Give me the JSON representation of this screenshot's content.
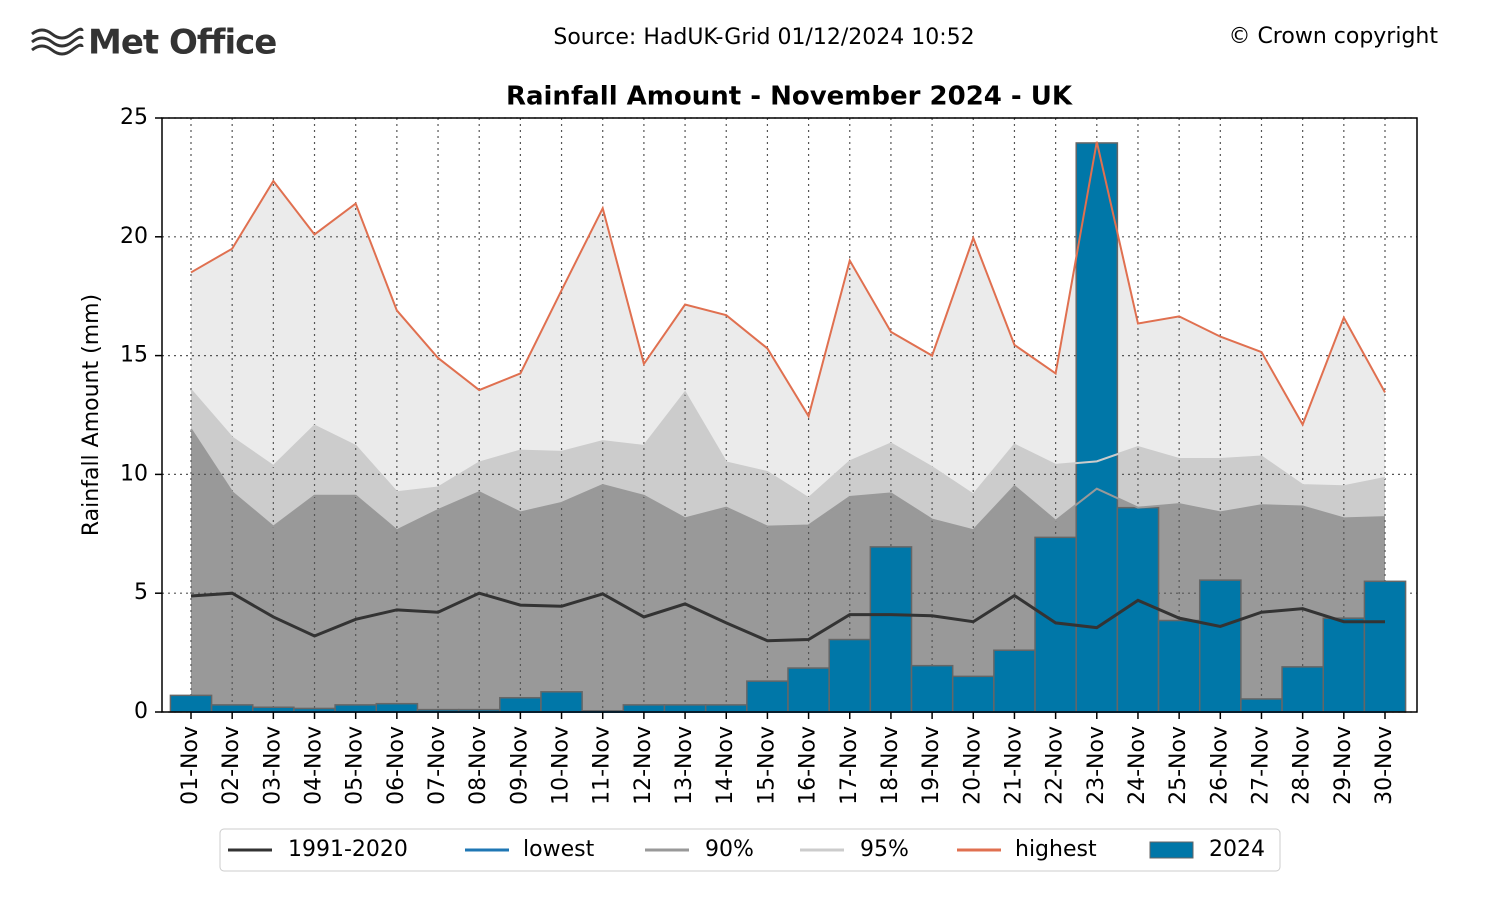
{
  "header": {
    "logo": "Met Office",
    "source": "Source: HadUK-Grid 01/12/2024 10:52",
    "copyright": "© Crown copyright"
  },
  "chart_data": {
    "type": "line",
    "title": "Rainfall Amount - November 2024 - UK",
    "y_label": "Rainfall Amount (mm)",
    "categories": [
      "01-Nov",
      "02-Nov",
      "03-Nov",
      "04-Nov",
      "05-Nov",
      "06-Nov",
      "07-Nov",
      "08-Nov",
      "09-Nov",
      "10-Nov",
      "11-Nov",
      "12-Nov",
      "13-Nov",
      "14-Nov",
      "15-Nov",
      "16-Nov",
      "17-Nov",
      "18-Nov",
      "19-Nov",
      "20-Nov",
      "21-Nov",
      "22-Nov",
      "23-Nov",
      "24-Nov",
      "25-Nov",
      "26-Nov",
      "27-Nov",
      "28-Nov",
      "29-Nov",
      "30-Nov"
    ],
    "ylim": [
      0,
      25
    ],
    "yticks": [
      0,
      5,
      10,
      15,
      20,
      25
    ],
    "grid": true,
    "series": [
      {
        "name": "1991-2020",
        "type": "line",
        "color": "#333333",
        "values": [
          4.88,
          5.0,
          4.0,
          3.2,
          3.9,
          4.3,
          4.2,
          5.0,
          4.5,
          4.45,
          4.97,
          4.0,
          4.55,
          3.75,
          3.0,
          3.05,
          4.1,
          4.1,
          4.05,
          3.8,
          4.9,
          3.75,
          3.55,
          4.7,
          3.95,
          3.6,
          4.2,
          4.35,
          3.8,
          3.8
        ]
      },
      {
        "name": "lowest",
        "type": "line",
        "color": "#1f77b4",
        "values": [
          0,
          0,
          0,
          0,
          0,
          0,
          0,
          0,
          0,
          0,
          0,
          0,
          0,
          0,
          0,
          0,
          0,
          0,
          0,
          0,
          0,
          0,
          0,
          0,
          0,
          0,
          0,
          0,
          0,
          0
        ]
      },
      {
        "name": "90%",
        "type": "line",
        "color": "#999999",
        "fill": "#999999",
        "values": [
          11.9,
          9.25,
          7.8,
          9.1,
          9.1,
          7.65,
          8.5,
          9.25,
          8.4,
          8.8,
          9.55,
          9.1,
          8.15,
          8.6,
          7.8,
          7.85,
          9.05,
          9.2,
          8.1,
          7.65,
          9.5,
          8.05,
          9.4,
          8.6,
          8.75,
          8.4,
          8.7,
          8.65,
          8.15,
          8.2
        ]
      },
      {
        "name": "95%",
        "type": "line",
        "color": "#cccccc",
        "fill": "#cccccc",
        "values": [
          13.55,
          11.55,
          10.35,
          12.05,
          11.2,
          9.25,
          9.45,
          10.5,
          11.0,
          10.95,
          11.4,
          11.2,
          13.45,
          10.5,
          10.1,
          9.0,
          10.55,
          11.3,
          10.3,
          9.15,
          11.25,
          10.4,
          10.55,
          11.15,
          10.65,
          10.65,
          10.75,
          9.55,
          9.5,
          9.85
        ]
      },
      {
        "name": "highest",
        "type": "line",
        "color": "#e07050",
        "fill": "#ebebeb",
        "values": [
          18.5,
          19.5,
          22.35,
          20.1,
          21.4,
          16.9,
          14.9,
          13.55,
          14.25,
          17.75,
          21.2,
          14.65,
          17.15,
          16.7,
          15.3,
          12.45,
          19.0,
          16.0,
          15.0,
          19.95,
          15.45,
          14.25,
          24.0,
          16.35,
          16.65,
          15.8,
          15.15,
          12.1,
          16.6,
          13.45
        ]
      },
      {
        "name": "2024",
        "type": "bar",
        "color": "#0077a8",
        "values": [
          0.7,
          0.3,
          0.2,
          0.15,
          0.3,
          0.35,
          0.1,
          0.1,
          0.6,
          0.85,
          0.05,
          0.3,
          0.3,
          0.3,
          1.3,
          1.85,
          3.05,
          6.95,
          1.95,
          1.5,
          2.6,
          7.35,
          23.95,
          8.6,
          3.85,
          5.55,
          0.55,
          1.9,
          3.95,
          5.5
        ]
      }
    ]
  }
}
